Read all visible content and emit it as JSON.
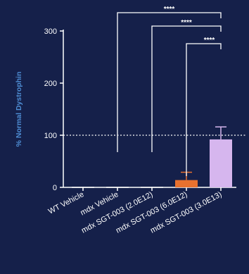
{
  "chart_data": {
    "type": "bar",
    "ylabel": "% Normal Dystrophin",
    "ylim": [
      0,
      300
    ],
    "yticks": [
      0,
      100,
      200,
      300
    ],
    "reference_line": 100,
    "categories": [
      "WT Vehicle",
      "mdx Vehicle",
      "mdx SGT-003 (2.0E12)",
      "mdx SGT-003 (6.0E12)",
      "mdx SGT-003 (3.0E13)"
    ],
    "values": [
      0,
      0,
      0,
      14,
      92
    ],
    "error_upper": [
      0,
      0,
      0,
      29,
      116
    ],
    "bar_colors": [
      "#ffffff",
      "#ffffff",
      "#ffffff",
      "#e8712f",
      "#d6b6ee"
    ],
    "comparisons": [
      {
        "from": "mdx Vehicle",
        "to": "mdx SGT-003 (3.0E13)",
        "label": "****"
      },
      {
        "from": "mdx SGT-003 (2.0E12)",
        "to": "mdx SGT-003 (3.0E13)",
        "label": "****"
      },
      {
        "from": "mdx SGT-003 (6.0E12)",
        "to": "mdx SGT-003 (3.0E13)",
        "label": "****"
      }
    ],
    "colors": {
      "axis": "#ffffff",
      "ylabel": "#4f8fd6",
      "text": "#ffffff"
    }
  }
}
